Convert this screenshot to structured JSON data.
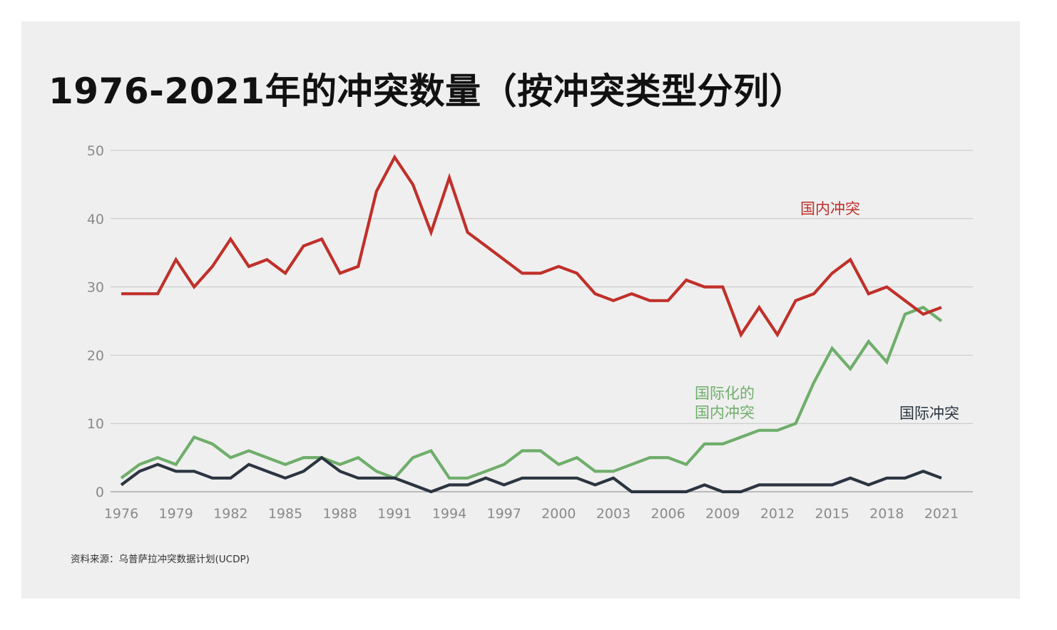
{
  "chart_data": {
    "type": "line",
    "title": "1976-2021年的冲突数量（按冲突类型分列）",
    "source": "资料来源：乌普萨拉冲突数据计划(UCDP)",
    "xlabel": "",
    "ylabel": "",
    "ylim": [
      0,
      50
    ],
    "yticks": [
      "0",
      "10",
      "20",
      "30",
      "40",
      "50"
    ],
    "yticks_values": [
      0,
      10,
      20,
      30,
      40,
      50
    ],
    "xticks": [
      "1976",
      "1979",
      "1982",
      "1985",
      "1988",
      "1991",
      "1994",
      "1997",
      "2000",
      "2003",
      "2006",
      "2009",
      "2012",
      "2015",
      "2018",
      "2021"
    ],
    "xticks_values": [
      1976,
      1979,
      1982,
      1985,
      1988,
      1991,
      1994,
      1997,
      2000,
      2003,
      2006,
      2009,
      2012,
      2015,
      2018,
      2021
    ],
    "xlim": [
      1976,
      2021
    ],
    "grid": true,
    "x": [
      1976,
      1977,
      1978,
      1979,
      1980,
      1981,
      1982,
      1983,
      1984,
      1985,
      1986,
      1987,
      1988,
      1989,
      1990,
      1991,
      1992,
      1993,
      1994,
      1995,
      1996,
      1997,
      1998,
      1999,
      2000,
      2001,
      2002,
      2003,
      2004,
      2005,
      2006,
      2007,
      2008,
      2009,
      2010,
      2011,
      2012,
      2013,
      2014,
      2015,
      2016,
      2017,
      2018,
      2019,
      2020,
      2021
    ],
    "series": [
      {
        "name": "国内冲突",
        "color": "#c0302a",
        "values": [
          29,
          29,
          29,
          34,
          30,
          33,
          37,
          33,
          34,
          32,
          36,
          37,
          32,
          33,
          44,
          49,
          45,
          38,
          46,
          38,
          36,
          34,
          32,
          32,
          33,
          32,
          29,
          28,
          29,
          28,
          28,
          31,
          30,
          30,
          23,
          27,
          23,
          28,
          29,
          32,
          34,
          29,
          30,
          28,
          26,
          27
        ]
      },
      {
        "name": "国际化的国内冲突",
        "label_lines": [
          "国际化的",
          "国内冲突"
        ],
        "color": "#6fae6b",
        "values": [
          2,
          4,
          5,
          4,
          8,
          7,
          5,
          6,
          5,
          4,
          5,
          5,
          4,
          5,
          3,
          2,
          5,
          6,
          2,
          2,
          3,
          4,
          6,
          6,
          4,
          5,
          3,
          3,
          4,
          5,
          5,
          4,
          7,
          7,
          8,
          9,
          9,
          10,
          16,
          21,
          18,
          22,
          19,
          26,
          27,
          25
        ]
      },
      {
        "name": "国际冲突",
        "color": "#2b3541",
        "values": [
          1,
          3,
          4,
          3,
          3,
          2,
          2,
          4,
          3,
          2,
          3,
          5,
          3,
          2,
          2,
          2,
          1,
          0,
          1,
          1,
          2,
          1,
          2,
          2,
          2,
          2,
          1,
          2,
          0,
          0,
          0,
          0,
          1,
          0,
          0,
          1,
          1,
          1,
          1,
          1,
          2,
          1,
          2,
          2,
          3,
          2
        ]
      }
    ]
  }
}
